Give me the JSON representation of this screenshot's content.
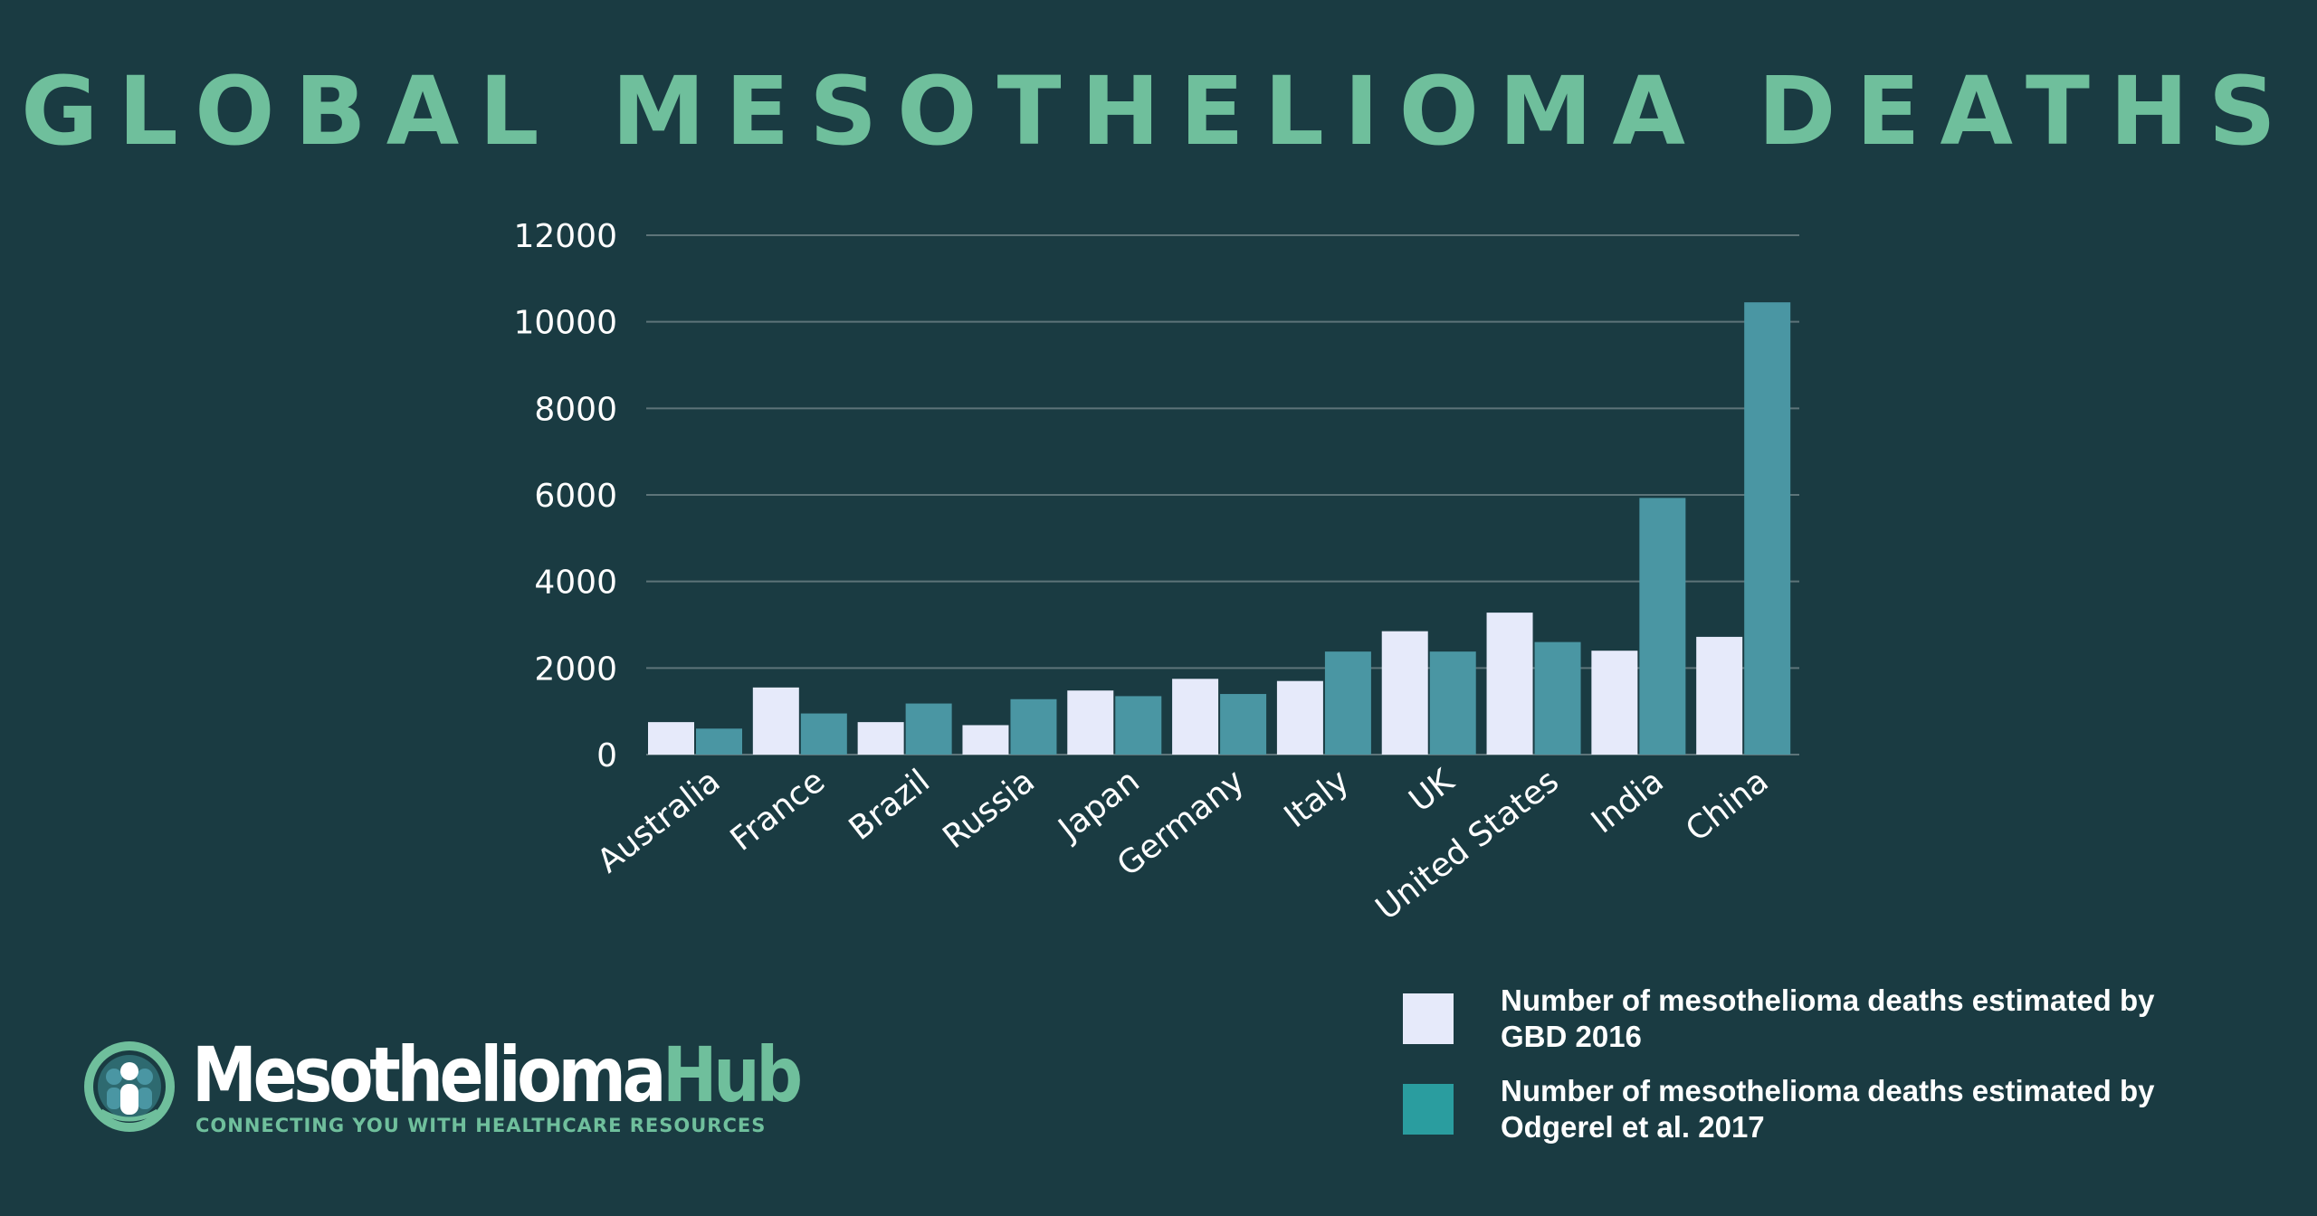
{
  "title": "GLOBAL MESOTHELIOMA DEATHS",
  "chart_data": {
    "type": "bar",
    "title": "GLOBAL MESOTHELIOMA DEATHS",
    "xlabel": "",
    "ylabel": "",
    "ylim": [
      0,
      12000
    ],
    "yticks": [
      "0",
      "2000",
      "4000",
      "6000",
      "8000",
      "10000",
      "12000"
    ],
    "grid": true,
    "legend_position": "bottom-right",
    "categories": [
      "Australia",
      "France",
      "Brazil",
      "Russia",
      "Japan",
      "Germany",
      "Italy",
      "UK",
      "United States",
      "India",
      "China"
    ],
    "series": [
      {
        "name": "Number of mesothelioma deaths estimated by GBD 2016",
        "color": "#e6eafa",
        "values": [
          750,
          1550,
          750,
          680,
          1480,
          1750,
          1700,
          2850,
          3280,
          2400,
          2720
        ]
      },
      {
        "name": "Number of mesothelioma deaths estimated by Odgerel et al. 2017",
        "color": "#4a96a3",
        "values": [
          600,
          950,
          1180,
          1280,
          1350,
          1400,
          2380,
          2380,
          2600,
          5930,
          10450
        ]
      }
    ]
  },
  "legend": {
    "swatch_colors": [
      "#e6eafa",
      "#2a9d9f"
    ]
  },
  "logo": {
    "brand_main": "Mesothelioma",
    "brand_accent": "Hub",
    "tagline": "CONNECTING YOU WITH HEALTHCARE RESOURCES",
    "icon": "people-in-circle-icon"
  },
  "colors": {
    "background": "#1a3b42",
    "accent": "#6fbf9c",
    "gridline": "#5d7479",
    "text": "#ffffff"
  }
}
